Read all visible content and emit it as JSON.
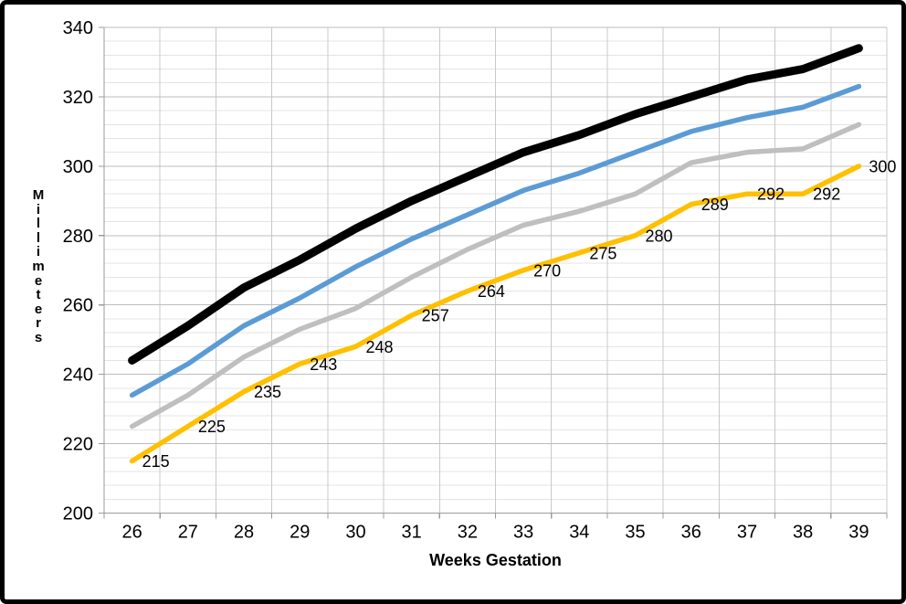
{
  "chart_data": {
    "type": "line",
    "title": "",
    "xlabel": "Weeks Gestation",
    "ylabel": "Millimeters",
    "x": [
      26,
      27,
      28,
      29,
      30,
      31,
      32,
      33,
      34,
      35,
      36,
      37,
      38,
      39
    ],
    "x_tick_labels": [
      "26",
      "27",
      "28",
      "29",
      "30",
      "31",
      "32",
      "33",
      "34",
      "35",
      "36",
      "37",
      "38",
      "39"
    ],
    "y_tick_labels": [
      "200",
      "220",
      "240",
      "260",
      "280",
      "300",
      "320",
      "340"
    ],
    "ylim": [
      200,
      340
    ],
    "y_major_step": 20,
    "y_minor_step": 4,
    "grid": true,
    "legend": "none",
    "series": [
      {
        "name": "black-line",
        "color": "#000000",
        "stroke_width": 9,
        "values": [
          244,
          254,
          265,
          273,
          282,
          290,
          297,
          304,
          309,
          315,
          320,
          325,
          328,
          334
        ]
      },
      {
        "name": "blue-line",
        "color": "#5B9BD5",
        "stroke_width": 5.5,
        "values": [
          234,
          243,
          254,
          262,
          271,
          279,
          286,
          293,
          298,
          304,
          310,
          314,
          317,
          323
        ]
      },
      {
        "name": "gray-line",
        "color": "#BFBFBF",
        "stroke_width": 5.5,
        "values": [
          225,
          234,
          245,
          253,
          259,
          268,
          276,
          283,
          287,
          292,
          301,
          304,
          305,
          312
        ]
      },
      {
        "name": "gold-line",
        "color": "#FFC000",
        "stroke_width": 5.5,
        "values": [
          215,
          225,
          235,
          243,
          248,
          257,
          264,
          270,
          275,
          280,
          289,
          292,
          292,
          300
        ],
        "data_labels": [
          "215",
          "225",
          "235",
          "243",
          "248",
          "257",
          "264",
          "270",
          "275",
          "280",
          "289",
          "292",
          "292",
          "300"
        ],
        "data_label_position": "right"
      }
    ],
    "colors": {
      "background": "#FFFFFF",
      "frame_border": "#000000",
      "minor_gridline": "#E4E4E4",
      "major_gridline": "#BDBDBD",
      "vertical_gridline": "#C9C9C9",
      "axis_line": "#9B9B9B",
      "tick_text": "#000000",
      "data_label_text": "#000000"
    }
  }
}
